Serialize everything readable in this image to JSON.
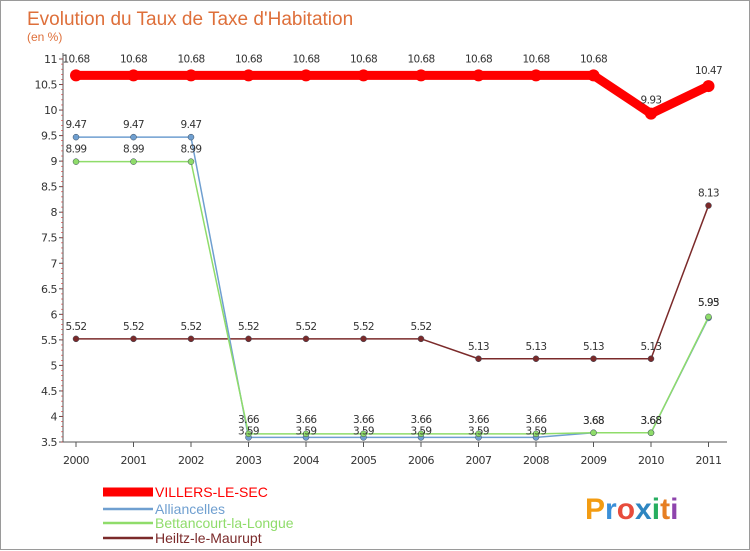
{
  "chart_data": {
    "type": "line",
    "title": "Evolution du Taux de Taxe d'Habitation",
    "subtitle": "(en %)",
    "x": [
      "2000",
      "2001",
      "2002",
      "2003",
      "2004",
      "2005",
      "2006",
      "2007",
      "2008",
      "2009",
      "2010",
      "2011"
    ],
    "ylim": [
      3.5,
      11
    ],
    "y_ticks": [
      "3.5",
      "4",
      "4.5",
      "5",
      "5.5",
      "6",
      "6.5",
      "7",
      "7.5",
      "8",
      "8.5",
      "9",
      "9.5",
      "10",
      "10.5",
      "11"
    ],
    "grid": false,
    "legend_position": "bottom-left",
    "series": [
      {
        "name": "VILLERS-LE-SEC",
        "color": "#ff0000",
        "values": [
          10.68,
          10.68,
          10.68,
          10.68,
          10.68,
          10.68,
          10.68,
          10.68,
          10.68,
          10.68,
          9.93,
          10.47
        ],
        "labels": [
          "10.68",
          "10.68",
          "10.68",
          "10.68",
          "10.68",
          "10.68",
          "10.68",
          "10.68",
          "10.68",
          "10.68",
          "9.93",
          "10.47"
        ]
      },
      {
        "name": "Alliancelles",
        "color": "#6f9fd0",
        "values": [
          9.47,
          9.47,
          9.47,
          3.59,
          3.59,
          3.59,
          3.59,
          3.59,
          3.59,
          3.68,
          3.68,
          5.93
        ],
        "labels": [
          "9.47",
          "9.47",
          "9.47",
          "3.59",
          "3.59",
          "3.59",
          "3.59",
          "3.59",
          "3.59",
          "3.68",
          "3.68",
          "5.93"
        ]
      },
      {
        "name": "Bettancourt-la-Longue",
        "color": "#8fdc6a",
        "values": [
          8.99,
          8.99,
          8.99,
          3.66,
          3.66,
          3.66,
          3.66,
          3.66,
          3.66,
          3.68,
          3.68,
          5.95
        ],
        "labels": [
          "8.99",
          "8.99",
          "8.99",
          "3.66",
          "3.66",
          "3.66",
          "3.66",
          "3.66",
          "3.66",
          "3.68",
          "3.68",
          "5.95"
        ]
      },
      {
        "name": "Heiltz-le-Maurupt",
        "color": "#7b2a2a",
        "values": [
          5.52,
          5.52,
          5.52,
          5.52,
          5.52,
          5.52,
          5.52,
          5.13,
          5.13,
          5.13,
          5.13,
          8.13
        ],
        "labels": [
          "5.52",
          "5.52",
          "5.52",
          "5.52",
          "5.52",
          "5.52",
          "5.52",
          "5.13",
          "5.13",
          "5.13",
          "5.13",
          "8.13"
        ]
      }
    ]
  },
  "logo": {
    "letters": [
      "P",
      "r",
      "o",
      "x",
      "i",
      "t",
      "i"
    ],
    "colors": [
      "#f39c12",
      "#3a8fd8",
      "#e74c3c",
      "#2e86c1",
      "#27ae60",
      "#e67e22",
      "#8e44ad"
    ]
  }
}
